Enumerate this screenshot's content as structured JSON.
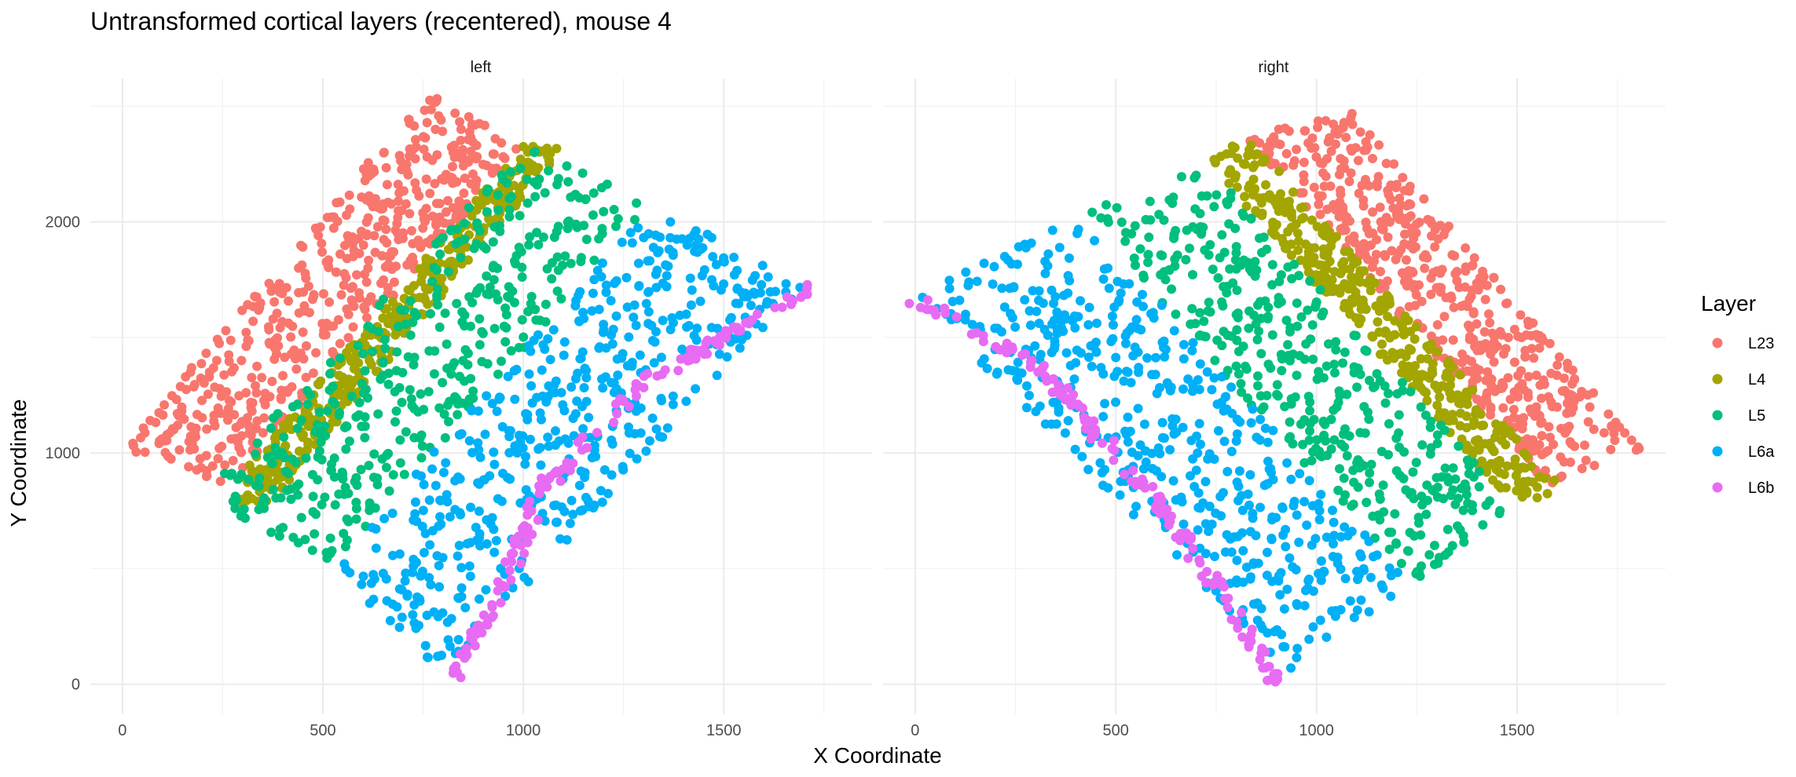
{
  "chart_data": {
    "type": "scatter",
    "title": "Untransformed cortical layers (recentered), mouse 4",
    "xlabel": "X Coordinate",
    "ylabel": "Y Coordinate",
    "xlim": [
      -80,
      1870
    ],
    "ylim": [
      -130,
      2620
    ],
    "x_ticks": [
      0,
      500,
      1000,
      1500
    ],
    "y_ticks": [
      0,
      1000,
      2000
    ],
    "grid": true,
    "legend": {
      "title": "Layer",
      "position": "right",
      "entries": [
        {
          "label": "L23",
          "color": "#F8766D"
        },
        {
          "label": "L4",
          "color": "#A3A500"
        },
        {
          "label": "L5",
          "color": "#00BF7D"
        },
        {
          "label": "L6a",
          "color": "#00B0F6"
        },
        {
          "label": "L6b",
          "color": "#E76BF3"
        }
      ]
    },
    "panels": [
      {
        "strip": "left",
        "layers": [
          {
            "name": "L23",
            "color": "#F8766D",
            "band": [
              [
                0,
                1020
              ],
              [
                760,
                2560
              ],
              [
                1000,
                2330
              ],
              [
                270,
                860
              ]
            ],
            "density": 520
          },
          {
            "name": "L4",
            "color": "#A3A500",
            "band": [
              [
                270,
                860
              ],
              [
                1000,
                2330
              ],
              [
                1000,
                2330
              ],
              [
                1100,
                2320
              ],
              [
                330,
                700
              ]
            ],
            "density": 380
          },
          {
            "name": "L5",
            "color": "#00BF7D",
            "band": [
              [
                200,
                820
              ],
              [
                1000,
                2330
              ],
              [
                1320,
                2080
              ],
              [
                520,
                500
              ]
            ],
            "density": 420
          },
          {
            "name": "L6a",
            "color": "#00B0F6",
            "band": [
              [
                520,
                500
              ],
              [
                1320,
                2080
              ],
              [
                1700,
                1720
              ],
              [
                800,
                40
              ]
            ],
            "density": 520
          },
          {
            "name": "L6b",
            "color": "#E76BF3",
            "curve": [
              [
                820,
                0
              ],
              [
                930,
                350
              ],
              [
                1050,
                850
              ],
              [
                1300,
                1300
              ],
              [
                1720,
                1720
              ]
            ],
            "density": 150
          }
        ]
      },
      {
        "strip": "right",
        "layers": [
          {
            "name": "L23",
            "color": "#F8766D",
            "band": [
              [
                820,
                2370
              ],
              [
                1080,
                2490
              ],
              [
                1810,
                1020
              ],
              [
                1580,
                850
              ]
            ],
            "density": 520
          },
          {
            "name": "L4",
            "color": "#A3A500",
            "band": [
              [
                720,
                2270
              ],
              [
                830,
                2370
              ],
              [
                1610,
                850
              ],
              [
                1500,
                750
              ]
            ],
            "density": 380
          },
          {
            "name": "L5",
            "color": "#00BF7D",
            "band": [
              [
                420,
                2030
              ],
              [
                720,
                2270
              ],
              [
                1500,
                750
              ],
              [
                1230,
                430
              ]
            ],
            "density": 420
          },
          {
            "name": "L6a",
            "color": "#00B0F6",
            "band": [
              [
                0,
                1680
              ],
              [
                420,
                2030
              ],
              [
                1230,
                430
              ],
              [
                930,
                50
              ]
            ],
            "density": 520
          },
          {
            "name": "L6b",
            "color": "#E76BF3",
            "curve": [
              [
                0,
                1660
              ],
              [
                300,
                1380
              ],
              [
                600,
                800
              ],
              [
                800,
                300
              ],
              [
                900,
                0
              ]
            ],
            "density": 150
          }
        ]
      }
    ]
  }
}
